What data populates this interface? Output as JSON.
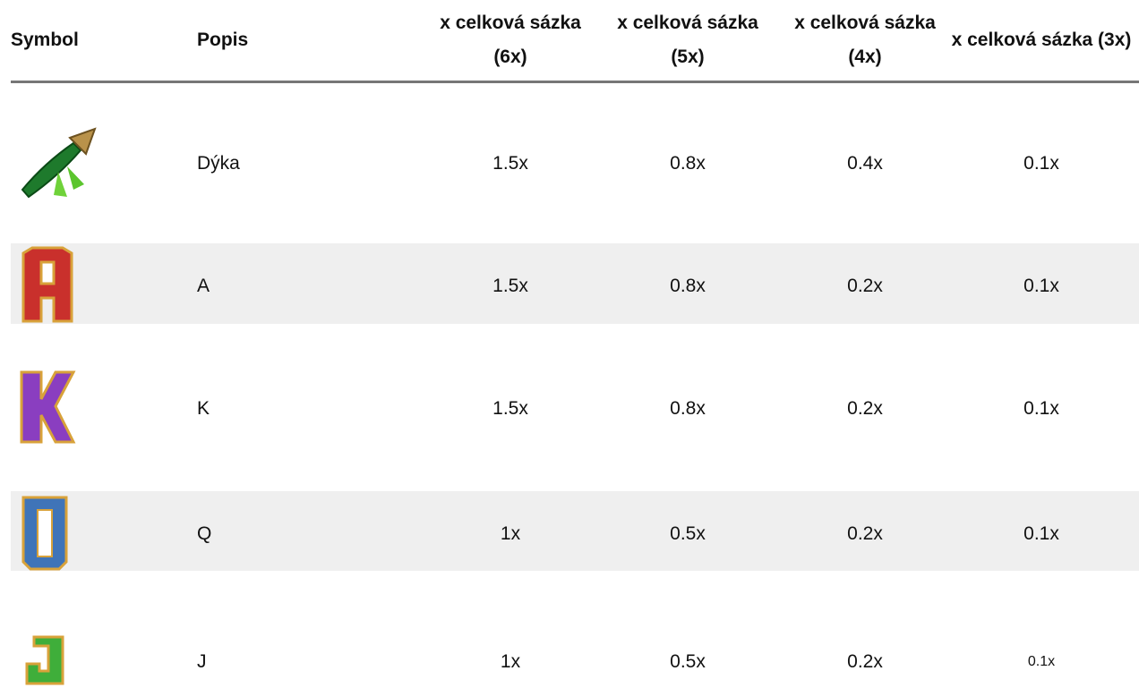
{
  "table": {
    "headers": [
      "Symbol",
      "Popis",
      "x celková sázka (6x)",
      "x celková sázka (5x)",
      "x celková sázka (4x)",
      "x celková sázka (3x)"
    ],
    "rows": [
      {
        "name": "Dýka",
        "values": [
          "1.5x",
          "0.8x",
          "0.4x",
          "0.1x"
        ]
      },
      {
        "name": "A",
        "values": [
          "1.5x",
          "0.8x",
          "0.2x",
          "0.1x"
        ]
      },
      {
        "name": "K",
        "values": [
          "1.5x",
          "0.8x",
          "0.2x",
          "0.1x"
        ]
      },
      {
        "name": "Q",
        "values": [
          "1x",
          "0.5x",
          "0.2x",
          "0.1x"
        ]
      },
      {
        "name": "J",
        "values": [
          "1x",
          "0.5x",
          "0.2x",
          "0.1x"
        ]
      }
    ]
  }
}
